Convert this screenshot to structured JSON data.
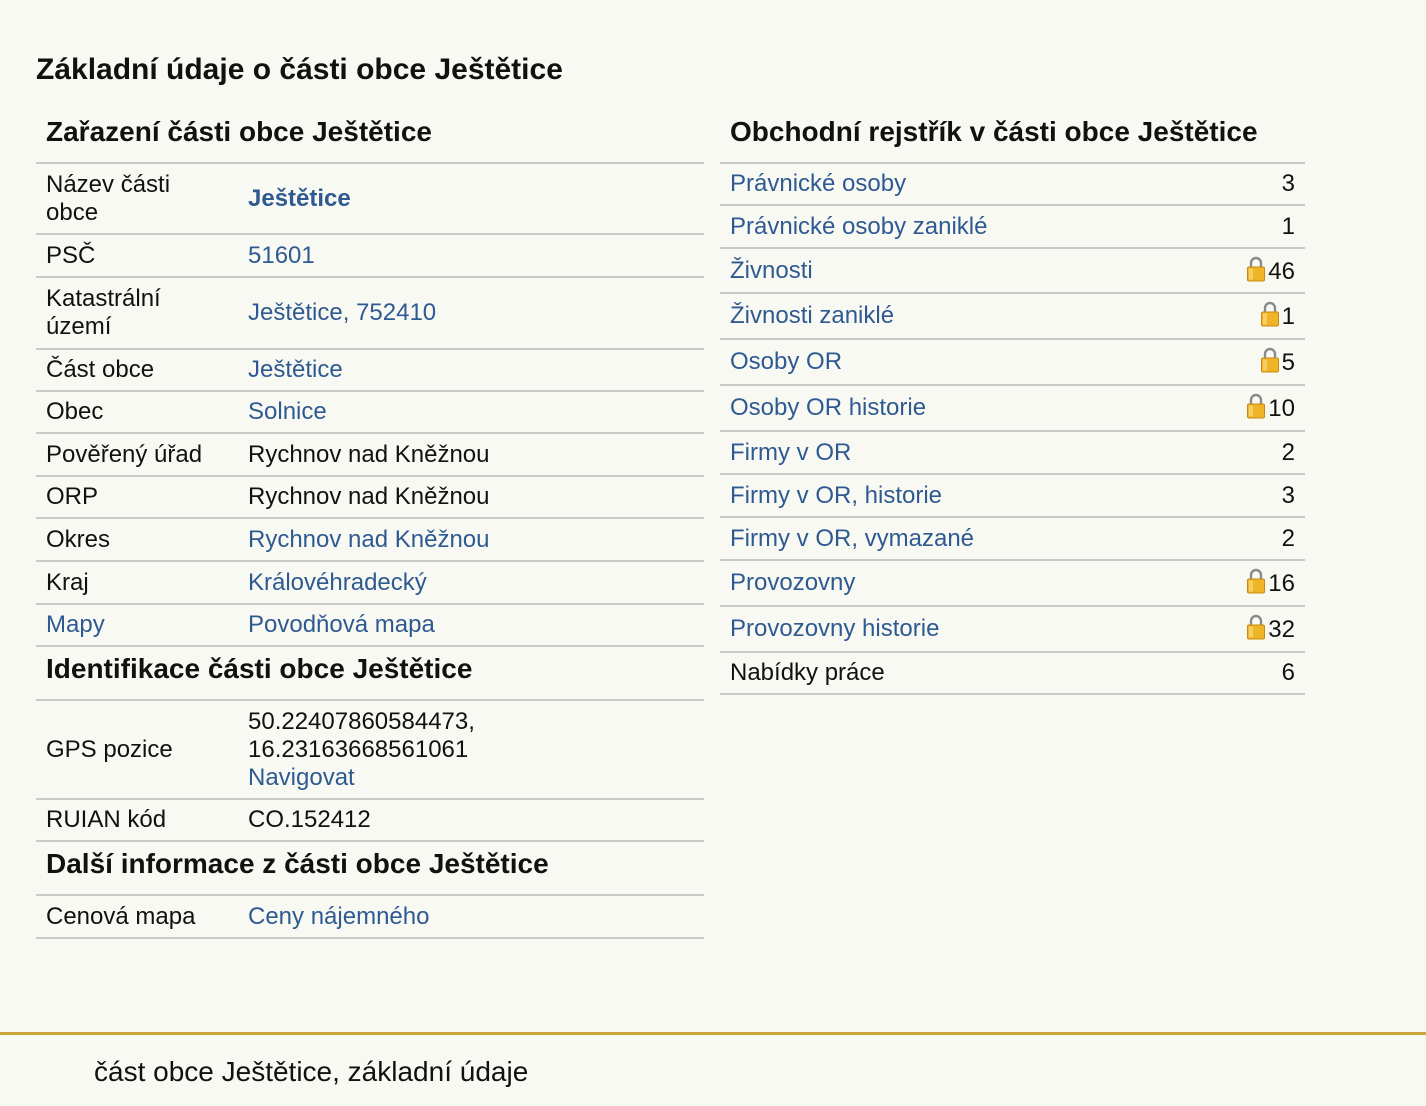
{
  "page_title": "Základní údaje o části obce Ještětice",
  "zarazeni": {
    "heading": "Zařazení části obce Ještětice",
    "rows": [
      {
        "label": "Název části obce",
        "value": "Ještětice"
      },
      {
        "label": "PSČ",
        "value": "51601"
      },
      {
        "label": "Katastrální území",
        "value": "Ještětice, 752410"
      },
      {
        "label": "Část obce",
        "value": "Ještětice"
      },
      {
        "label": "Obec",
        "value": "Solnice"
      },
      {
        "label": "Pověřený úřad",
        "value": "Rychnov nad Kněžnou"
      },
      {
        "label": "ORP",
        "value": "Rychnov nad Kněžnou"
      },
      {
        "label": "Okres",
        "value": "Rychnov nad Kněžnou"
      },
      {
        "label": "Kraj",
        "value": "Královéhradecký"
      },
      {
        "label": "Mapy",
        "value": "Povodňová mapa"
      }
    ]
  },
  "identifikace": {
    "heading": "Identifikace části obce Ještětice",
    "gps_label": "GPS pozice",
    "gps_lat": "50.22407860584473,",
    "gps_lon": "16.23163668561061",
    "navigate_label": "Navigovat",
    "ruian_label": "RUIAN kód",
    "ruian_value": "CO.152412"
  },
  "dalsi": {
    "heading": "Další informace z části obce Ještětice",
    "label": "Cenová mapa",
    "value": "Ceny nájemného"
  },
  "rejstrik": {
    "heading": "Obchodní rejstřík v části obce Ještětice",
    "rows": [
      {
        "label": "Právnické osoby",
        "count": "3",
        "locked": false
      },
      {
        "label": "Právnické osoby zaniklé",
        "count": "1",
        "locked": false
      },
      {
        "label": "Živnosti",
        "count": "46",
        "locked": true
      },
      {
        "label": "Živnosti zaniklé",
        "count": "1",
        "locked": true
      },
      {
        "label": "Osoby OR",
        "count": "5",
        "locked": true
      },
      {
        "label": "Osoby OR historie",
        "count": "10",
        "locked": true
      },
      {
        "label": "Firmy v OR",
        "count": "2",
        "locked": false
      },
      {
        "label": "Firmy v OR, historie",
        "count": "3",
        "locked": false
      },
      {
        "label": "Firmy v OR, vymazané",
        "count": "2",
        "locked": false
      },
      {
        "label": "Provozovny",
        "count": "16",
        "locked": true
      },
      {
        "label": "Provozovny historie",
        "count": "32",
        "locked": true
      },
      {
        "label": "Nabídky práce",
        "count": "6",
        "locked": false
      }
    ]
  },
  "footer": {
    "text": "část obce Ještětice, základní údaje"
  },
  "colors": {
    "link": "#2e5a91",
    "footer_rule": "#c9a53a",
    "background": "#f9f9f4"
  },
  "icons": {
    "lock": "lock-icon"
  }
}
